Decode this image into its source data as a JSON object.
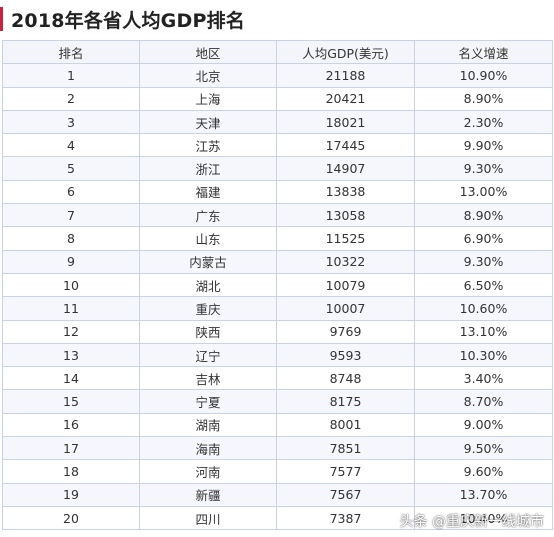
{
  "title": "2018年各省人均GDP排名",
  "columns": [
    "排名",
    "地区",
    "人均GDP(美元)",
    "名义增速"
  ],
  "rows": [
    [
      "1",
      "北京",
      "21188",
      "10.90%"
    ],
    [
      "2",
      "上海",
      "20421",
      "8.90%"
    ],
    [
      "3",
      "天津",
      "18021",
      "2.30%"
    ],
    [
      "4",
      "江苏",
      "17445",
      "9.90%"
    ],
    [
      "5",
      "浙江",
      "14907",
      "9.30%"
    ],
    [
      "6",
      "福建",
      "13838",
      "13.00%"
    ],
    [
      "7",
      "广东",
      "13058",
      "8.90%"
    ],
    [
      "8",
      "山东",
      "11525",
      "6.90%"
    ],
    [
      "9",
      "内蒙古",
      "10322",
      "9.30%"
    ],
    [
      "10",
      "湖北",
      "10079",
      "6.50%"
    ],
    [
      "11",
      "重庆",
      "10007",
      "10.60%"
    ],
    [
      "12",
      "陕西",
      "9769",
      "13.10%"
    ],
    [
      "13",
      "辽宁",
      "9593",
      "10.30%"
    ],
    [
      "14",
      "吉林",
      "8748",
      "3.40%"
    ],
    [
      "15",
      "宁夏",
      "8175",
      "8.70%"
    ],
    [
      "16",
      "湖南",
      "8001",
      "9.00%"
    ],
    [
      "17",
      "海南",
      "7851",
      "9.50%"
    ],
    [
      "18",
      "河南",
      "7577",
      "9.60%"
    ],
    [
      "19",
      "新疆",
      "7567",
      "13.70%"
    ],
    [
      "20",
      "四川",
      "7387",
      "10.40%"
    ]
  ],
  "watermark": "头条 @重庆新一线城市",
  "colors": {
    "accent_bar": "#c9233f",
    "border": "#c8d3e6",
    "row_alt": "#f5f7fc"
  }
}
